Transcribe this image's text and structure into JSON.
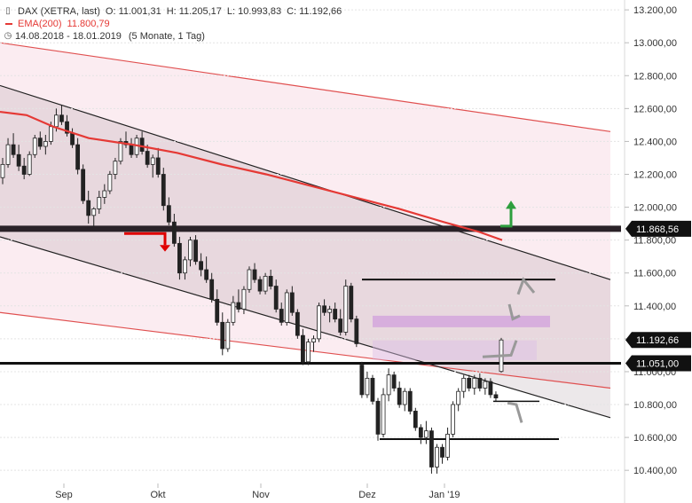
{
  "legend": {
    "title": "DAX (XETRA, last)",
    "open": "O: 11.001,31",
    "high": "H: 11.205,17",
    "low": "L: 10.993,83",
    "close": "C: 11.192,66",
    "ema": "EMA(200)",
    "ema_value": "11.800,79",
    "range": "14.08.2018 - 18.01.2019",
    "period": "(5 Monate, 1 Tag)",
    "icon_names": [
      "toggle-icon",
      "line-swatch-icon",
      "range-icon"
    ]
  },
  "colors": {
    "up": "#ffffff",
    "down": "#222222",
    "ema": "#e53935",
    "channel_fill": "rgba(240,180,200,0.25)",
    "channel_dark_fill": "rgba(150,130,140,0.18)",
    "zone": "rgba(200,140,220,0.5)",
    "tag": "#111111",
    "red_arrow": "#e00000",
    "green_arrow": "#2e9e3e",
    "gray_arrow": "#999999"
  },
  "chart_data": {
    "type": "candlestick",
    "xlabels": [
      "Sep",
      "Okt",
      "Nov",
      "Dez",
      "Jan '19"
    ],
    "ylabels": [
      "13.200,00",
      "13.000,00",
      "12.800,00",
      "12.600,00",
      "12.400,00",
      "12.200,00",
      "12.000,00",
      "11.800,00",
      "11.600,00",
      "11.400,00",
      "11.200,00",
      "11.000,00",
      "10.800,00",
      "10.600,00",
      "10.400,00"
    ],
    "yticks": [
      13200,
      13000,
      12800,
      12600,
      12400,
      12200,
      12000,
      11800,
      11600,
      11400,
      11200,
      11000,
      10800,
      10600,
      10400
    ],
    "ylim": [
      10320,
      13260
    ],
    "tags": [
      {
        "label": "11.868,56",
        "value": 11868.56
      },
      {
        "label": "11.192,66",
        "value": 11192.66
      },
      {
        "label": "11.051,00",
        "value": 11051.0
      }
    ],
    "candles": [
      [
        12180,
        12300,
        12140,
        12260
      ],
      [
        12260,
        12420,
        12240,
        12380
      ],
      [
        12380,
        12450,
        12300,
        12320
      ],
      [
        12320,
        12380,
        12220,
        12250
      ],
      [
        12250,
        12300,
        12170,
        12200
      ],
      [
        12200,
        12340,
        12190,
        12320
      ],
      [
        12320,
        12440,
        12300,
        12420
      ],
      [
        12420,
        12460,
        12350,
        12370
      ],
      [
        12370,
        12440,
        12320,
        12400
      ],
      [
        12400,
        12520,
        12380,
        12490
      ],
      [
        12490,
        12600,
        12460,
        12560
      ],
      [
        12560,
        12620,
        12500,
        12520
      ],
      [
        12520,
        12560,
        12430,
        12450
      ],
      [
        12450,
        12480,
        12360,
        12380
      ],
      [
        12380,
        12420,
        12200,
        12230
      ],
      [
        12230,
        12260,
        12020,
        12040
      ],
      [
        12040,
        12100,
        11900,
        11950
      ],
      [
        11950,
        12000,
        11880,
        11990
      ],
      [
        11990,
        12100,
        11960,
        12060
      ],
      [
        12060,
        12140,
        12020,
        12100
      ],
      [
        12100,
        12220,
        12080,
        12200
      ],
      [
        12200,
        12300,
        12170,
        12280
      ],
      [
        12280,
        12420,
        12260,
        12400
      ],
      [
        12400,
        12460,
        12360,
        12380
      ],
      [
        12380,
        12420,
        12300,
        12320
      ],
      [
        12320,
        12440,
        12300,
        12420
      ],
      [
        12420,
        12460,
        12320,
        12340
      ],
      [
        12340,
        12380,
        12240,
        12260
      ],
      [
        12260,
        12320,
        12180,
        12300
      ],
      [
        12300,
        12360,
        12180,
        12200
      ],
      [
        12200,
        12240,
        11980,
        12010
      ],
      [
        12010,
        12060,
        11890,
        11910
      ],
      [
        11910,
        11960,
        11760,
        11780
      ],
      [
        11780,
        11820,
        11560,
        11600
      ],
      [
        11600,
        11700,
        11560,
        11680
      ],
      [
        11680,
        11820,
        11640,
        11800
      ],
      [
        11800,
        11830,
        11650,
        11670
      ],
      [
        11670,
        11720,
        11580,
        11620
      ],
      [
        11620,
        11700,
        11540,
        11560
      ],
      [
        11560,
        11600,
        11420,
        11440
      ],
      [
        11440,
        11500,
        11280,
        11300
      ],
      [
        11300,
        11360,
        11100,
        11140
      ],
      [
        11140,
        11320,
        11120,
        11300
      ],
      [
        11300,
        11460,
        11280,
        11420
      ],
      [
        11420,
        11500,
        11360,
        11380
      ],
      [
        11380,
        11520,
        11350,
        11500
      ],
      [
        11500,
        11640,
        11480,
        11620
      ],
      [
        11620,
        11660,
        11540,
        11560
      ],
      [
        11560,
        11580,
        11470,
        11490
      ],
      [
        11490,
        11600,
        11470,
        11580
      ],
      [
        11580,
        11620,
        11500,
        11520
      ],
      [
        11520,
        11560,
        11360,
        11380
      ],
      [
        11380,
        11420,
        11280,
        11300
      ],
      [
        11300,
        11500,
        11280,
        11480
      ],
      [
        11480,
        11520,
        11340,
        11360
      ],
      [
        11360,
        11380,
        11200,
        11220
      ],
      [
        11220,
        11260,
        11040,
        11060
      ],
      [
        11060,
        11200,
        11040,
        11180
      ],
      [
        11180,
        11220,
        11120,
        11200
      ],
      [
        11200,
        11420,
        11180,
        11400
      ],
      [
        11400,
        11440,
        11340,
        11360
      ],
      [
        11360,
        11400,
        11300,
        11380
      ],
      [
        11380,
        11420,
        11300,
        11320
      ],
      [
        11320,
        11380,
        11220,
        11240
      ],
      [
        11240,
        11560,
        11220,
        11520
      ],
      [
        11520,
        11540,
        11300,
        11320
      ],
      [
        11320,
        11340,
        11150,
        11170
      ],
      [
        11040,
        11060,
        10840,
        10860
      ],
      [
        10860,
        11000,
        10840,
        10960
      ],
      [
        10960,
        10980,
        10800,
        10820
      ],
      [
        10820,
        10840,
        10580,
        10620
      ],
      [
        10620,
        10900,
        10600,
        10860
      ],
      [
        10860,
        11020,
        10820,
        10980
      ],
      [
        10980,
        11000,
        10880,
        10900
      ],
      [
        10900,
        10940,
        10780,
        10800
      ],
      [
        10800,
        10900,
        10760,
        10880
      ],
      [
        10880,
        10900,
        10740,
        10760
      ],
      [
        10760,
        10780,
        10640,
        10660
      ],
      [
        10660,
        10680,
        10560,
        10600
      ],
      [
        10600,
        10700,
        10560,
        10640
      ],
      [
        10640,
        10660,
        10380,
        10420
      ],
      [
        10420,
        10560,
        10380,
        10540
      ],
      [
        10540,
        10560,
        10440,
        10480
      ],
      [
        10480,
        10660,
        10460,
        10620
      ],
      [
        10620,
        10820,
        10600,
        10800
      ],
      [
        10800,
        10900,
        10760,
        10880
      ],
      [
        10880,
        10980,
        10840,
        10960
      ],
      [
        10960,
        10980,
        10880,
        10900
      ],
      [
        10900,
        10980,
        10860,
        10960
      ],
      [
        10960,
        10990,
        10880,
        10900
      ],
      [
        10900,
        10960,
        10860,
        10940
      ],
      [
        10940,
        10960,
        10840,
        10860
      ],
      [
        10860,
        10880,
        10820,
        10840
      ],
      [
        11001.31,
        11205.17,
        10993.83,
        11192.66
      ]
    ],
    "ema200": [
      [
        0,
        12580
      ],
      [
        30,
        12560
      ],
      [
        60,
        12490
      ],
      [
        100,
        12420
      ],
      [
        150,
        12380
      ],
      [
        200,
        12330
      ],
      [
        250,
        12260
      ],
      [
        300,
        12200
      ],
      [
        350,
        12130
      ],
      [
        400,
        12060
      ],
      [
        450,
        11990
      ],
      [
        500,
        11910
      ],
      [
        540,
        11850
      ],
      [
        566,
        11800
      ]
    ],
    "channel_upper_red": [
      [
        0,
        13000
      ],
      [
        688,
        12460
      ]
    ],
    "channel_lower_red": [
      [
        0,
        11360
      ],
      [
        688,
        10900
      ]
    ],
    "channel_upper_black": [
      [
        0,
        12740
      ],
      [
        688,
        11560
      ]
    ],
    "channel_lower_black": [
      [
        0,
        11820
      ],
      [
        688,
        10720
      ]
    ],
    "support_lines": [
      {
        "value": 11868.56,
        "x1": 0,
        "x2": 700,
        "width": 7
      },
      {
        "value": 11051.0,
        "x1": 0,
        "x2": 700,
        "width": 3
      },
      {
        "value": 11560,
        "x1": 408,
        "x2": 626,
        "width": 2
      },
      {
        "value": 10590,
        "x1": 428,
        "x2": 630,
        "width": 2
      },
      {
        "value": 10820,
        "x1": 556,
        "x2": 608,
        "width": 1.5
      }
    ],
    "zones": [
      {
        "x1": 420,
        "x2": 620,
        "y1": 11270,
        "y2": 11340,
        "dark": true
      },
      {
        "x1": 420,
        "x2": 605,
        "y1": 11070,
        "y2": 11190,
        "dark": false
      }
    ]
  }
}
